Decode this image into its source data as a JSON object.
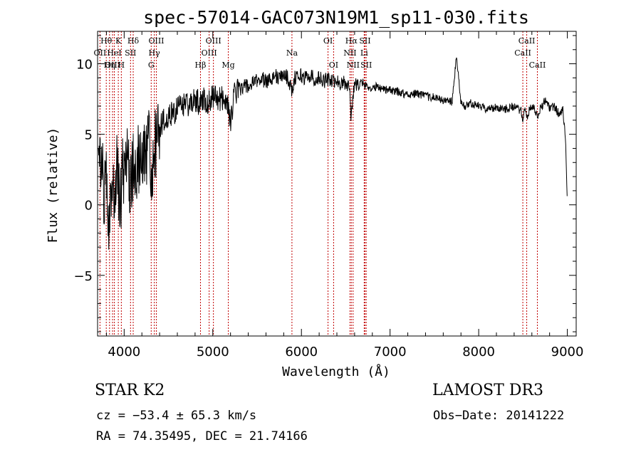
{
  "chart_data": {
    "type": "line",
    "title": "spec-57014-GAC073N19M1_sp11-030.fits",
    "xlabel": "Wavelength (Å)",
    "ylabel": "Flux (relative)",
    "xlim": [
      3700,
      9100
    ],
    "ylim": [
      -9.3,
      12.3
    ],
    "xticks": [
      4000,
      5000,
      6000,
      7000,
      8000,
      9000
    ],
    "xtick_labels": [
      "4000",
      "5000",
      "6000",
      "7000",
      "8000",
      "9000"
    ],
    "yticks": [
      -5,
      0,
      5,
      10
    ],
    "ytick_labels": [
      "−5",
      "0",
      "5",
      "10"
    ],
    "grid": false,
    "series": [
      {
        "name": "spectrum",
        "x": [
          3710,
          3740,
          3770,
          3800,
          3830,
          3860,
          3890,
          3920,
          3950,
          3980,
          4010,
          4040,
          4070,
          4100,
          4130,
          4160,
          4190,
          4220,
          4250,
          4280,
          4310,
          4340,
          4370,
          4400,
          4450,
          4500,
          4550,
          4600,
          4650,
          4700,
          4750,
          4800,
          4850,
          4900,
          4950,
          5000,
          5050,
          5100,
          5150,
          5200,
          5250,
          5300,
          5350,
          5400,
          5450,
          5500,
          5550,
          5600,
          5650,
          5700,
          5750,
          5800,
          5850,
          5890,
          5930,
          5980,
          6050,
          6100,
          6150,
          6200,
          6250,
          6300,
          6350,
          6400,
          6450,
          6500,
          6540,
          6562,
          6590,
          6620,
          6660,
          6700,
          6750,
          6800,
          6850,
          6900,
          7000,
          7100,
          7200,
          7300,
          7400,
          7500,
          7600,
          7700,
          7750,
          7800,
          7850,
          7900,
          8000,
          8100,
          8200,
          8300,
          8400,
          8480,
          8498,
          8520,
          8542,
          8580,
          8620,
          8662,
          8700,
          8750,
          8800,
          8850,
          8900,
          8950,
          8980,
          9000
        ],
        "y": [
          4.2,
          2.5,
          1.0,
          3.0,
          -1.5,
          2.8,
          0.5,
          3.2,
          -0.5,
          2.5,
          1.2,
          3.5,
          0.8,
          3.0,
          2.0,
          3.6,
          2.8,
          4.0,
          3.0,
          4.2,
          2.5,
          3.8,
          4.5,
          5.5,
          6.0,
          6.3,
          6.5,
          6.8,
          7.0,
          7.3,
          7.0,
          7.5,
          7.2,
          7.6,
          7.2,
          7.8,
          7.4,
          7.6,
          7.5,
          6.0,
          8.0,
          8.2,
          8.5,
          8.3,
          8.6,
          8.8,
          9.0,
          8.7,
          9.0,
          9.2,
          8.9,
          9.3,
          9.0,
          8.0,
          9.1,
          9.2,
          9.0,
          9.2,
          8.9,
          9.0,
          8.8,
          8.9,
          8.7,
          8.8,
          8.6,
          8.7,
          8.5,
          6.0,
          8.4,
          8.6,
          8.5,
          8.5,
          8.4,
          8.2,
          8.4,
          8.3,
          8.1,
          8.0,
          7.8,
          7.9,
          7.7,
          7.6,
          7.4,
          7.3,
          10.5,
          7.2,
          7.0,
          7.2,
          7.0,
          6.8,
          6.9,
          6.8,
          7.0,
          6.6,
          6.0,
          7.0,
          6.0,
          6.9,
          7.0,
          6.2,
          6.9,
          7.4,
          6.8,
          7.0,
          6.5,
          6.8,
          4.5,
          0.0
        ]
      }
    ],
    "spectral_lines": [
      {
        "label": "Hθ",
        "wavelength": 3798,
        "row": 1
      },
      {
        "label": "OII",
        "wavelength": 3727,
        "row": 2
      },
      {
        "label": "Hη",
        "wavelength": 3835,
        "row": 3
      },
      {
        "label": "OIII",
        "wavelength": 3869,
        "row": 3
      },
      {
        "label": "K",
        "wavelength": 3934,
        "row": 1
      },
      {
        "label": "H",
        "wavelength": 3968,
        "row": 3
      },
      {
        "label": "HeI",
        "wavelength": 3889,
        "row": 2
      },
      {
        "label": "SII",
        "wavelength": 4072,
        "row": 2
      },
      {
        "label": "Hδ",
        "wavelength": 4102,
        "row": 1
      },
      {
        "label": "OIII",
        "wavelength": 4363,
        "row": 1
      },
      {
        "label": "Hγ",
        "wavelength": 4340,
        "row": 2
      },
      {
        "label": "G",
        "wavelength": 4305,
        "row": 3
      },
      {
        "label": "Hβ",
        "wavelength": 4861,
        "row": 3
      },
      {
        "label": "OIII",
        "wavelength": 5007,
        "row": 1
      },
      {
        "label": "OIII",
        "wavelength": 4959,
        "row": 2
      },
      {
        "label": "Mg",
        "wavelength": 5175,
        "row": 3
      },
      {
        "label": "Na",
        "wavelength": 5893,
        "row": 2
      },
      {
        "label": "OI",
        "wavelength": 6300,
        "row": 1
      },
      {
        "label": "OI",
        "wavelength": 6363,
        "row": 3
      },
      {
        "label": "Hα",
        "wavelength": 6563,
        "row": 1
      },
      {
        "label": "NII",
        "wavelength": 6548,
        "row": 2
      },
      {
        "label": "NII",
        "wavelength": 6583,
        "row": 3
      },
      {
        "label": "SII",
        "wavelength": 6717,
        "row": 1
      },
      {
        "label": "Li",
        "wavelength": 6708,
        "row": 2
      },
      {
        "label": "SII",
        "wavelength": 6731,
        "row": 3
      },
      {
        "label": "CaII",
        "wavelength": 8542,
        "row": 1
      },
      {
        "label": "CaII",
        "wavelength": 8498,
        "row": 2
      },
      {
        "label": "CaII",
        "wavelength": 8662,
        "row": 3
      }
    ]
  },
  "info": {
    "object_class": "STAR    K2",
    "survey": "LAMOST DR3",
    "redshift": "cz = −53.4 ± 65.3 km/s",
    "obs_date": "Obs−Date: 20141222",
    "coordinates": "RA =  74.35495, DEC =  21.74166"
  }
}
